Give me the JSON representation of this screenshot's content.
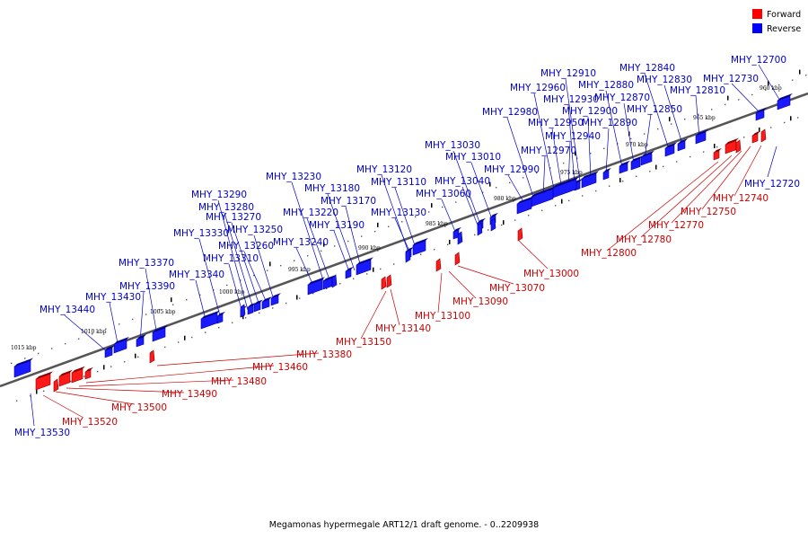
{
  "caption": "Megamonas hypermegale ART12/1 draft genome. - 0..2209938",
  "legend": [
    {
      "label": "Forward",
      "color": "#ff0000"
    },
    {
      "label": "Reverse",
      "color": "#0000ff"
    }
  ],
  "ticks": [
    "960 kbp",
    "965 kbp",
    "970 kbp",
    "975 kbp",
    "980 kbp",
    "985 kbp",
    "990 kbp",
    "995 kbp",
    "1000 kbp",
    "1005 kbp",
    "1010 kbp",
    "1015 kbp"
  ],
  "reverse_labels": [
    "MHY_12700",
    "MHY_12730",
    "MHY_12720",
    "MHY_12810",
    "MHY_12830",
    "MHY_12840",
    "MHY_12850",
    "MHY_12870",
    "MHY_12880",
    "MHY_12890",
    "MHY_12900",
    "MHY_12910",
    "MHY_12930",
    "MHY_12940",
    "MHY_12950",
    "MHY_12960",
    "MHY_12970",
    "MHY_12980",
    "MHY_12990",
    "MHY_13010",
    "MHY_13030",
    "MHY_13040",
    "MHY_13060",
    "MHY_13110",
    "MHY_13120",
    "MHY_13130",
    "MHY_13170",
    "MHY_13180",
    "MHY_13190",
    "MHY_13220",
    "MHY_13230",
    "MHY_13240",
    "MHY_13250",
    "MHY_13260",
    "MHY_13270",
    "MHY_13280",
    "MHY_13290",
    "MHY_13310",
    "MHY_13330",
    "MHY_13340",
    "MHY_13370",
    "MHY_13390",
    "MHY_13430",
    "MHY_13440",
    "MHY_13530"
  ],
  "forward_labels": [
    "MHY_12740",
    "MHY_12750",
    "MHY_12770",
    "MHY_12780",
    "MHY_12800",
    "MHY_13000",
    "MHY_13070",
    "MHY_13090",
    "MHY_13100",
    "MHY_13140",
    "MHY_13150",
    "MHY_13380",
    "MHY_13460",
    "MHY_13480",
    "MHY_13490",
    "MHY_13500",
    "MHY_13520"
  ]
}
